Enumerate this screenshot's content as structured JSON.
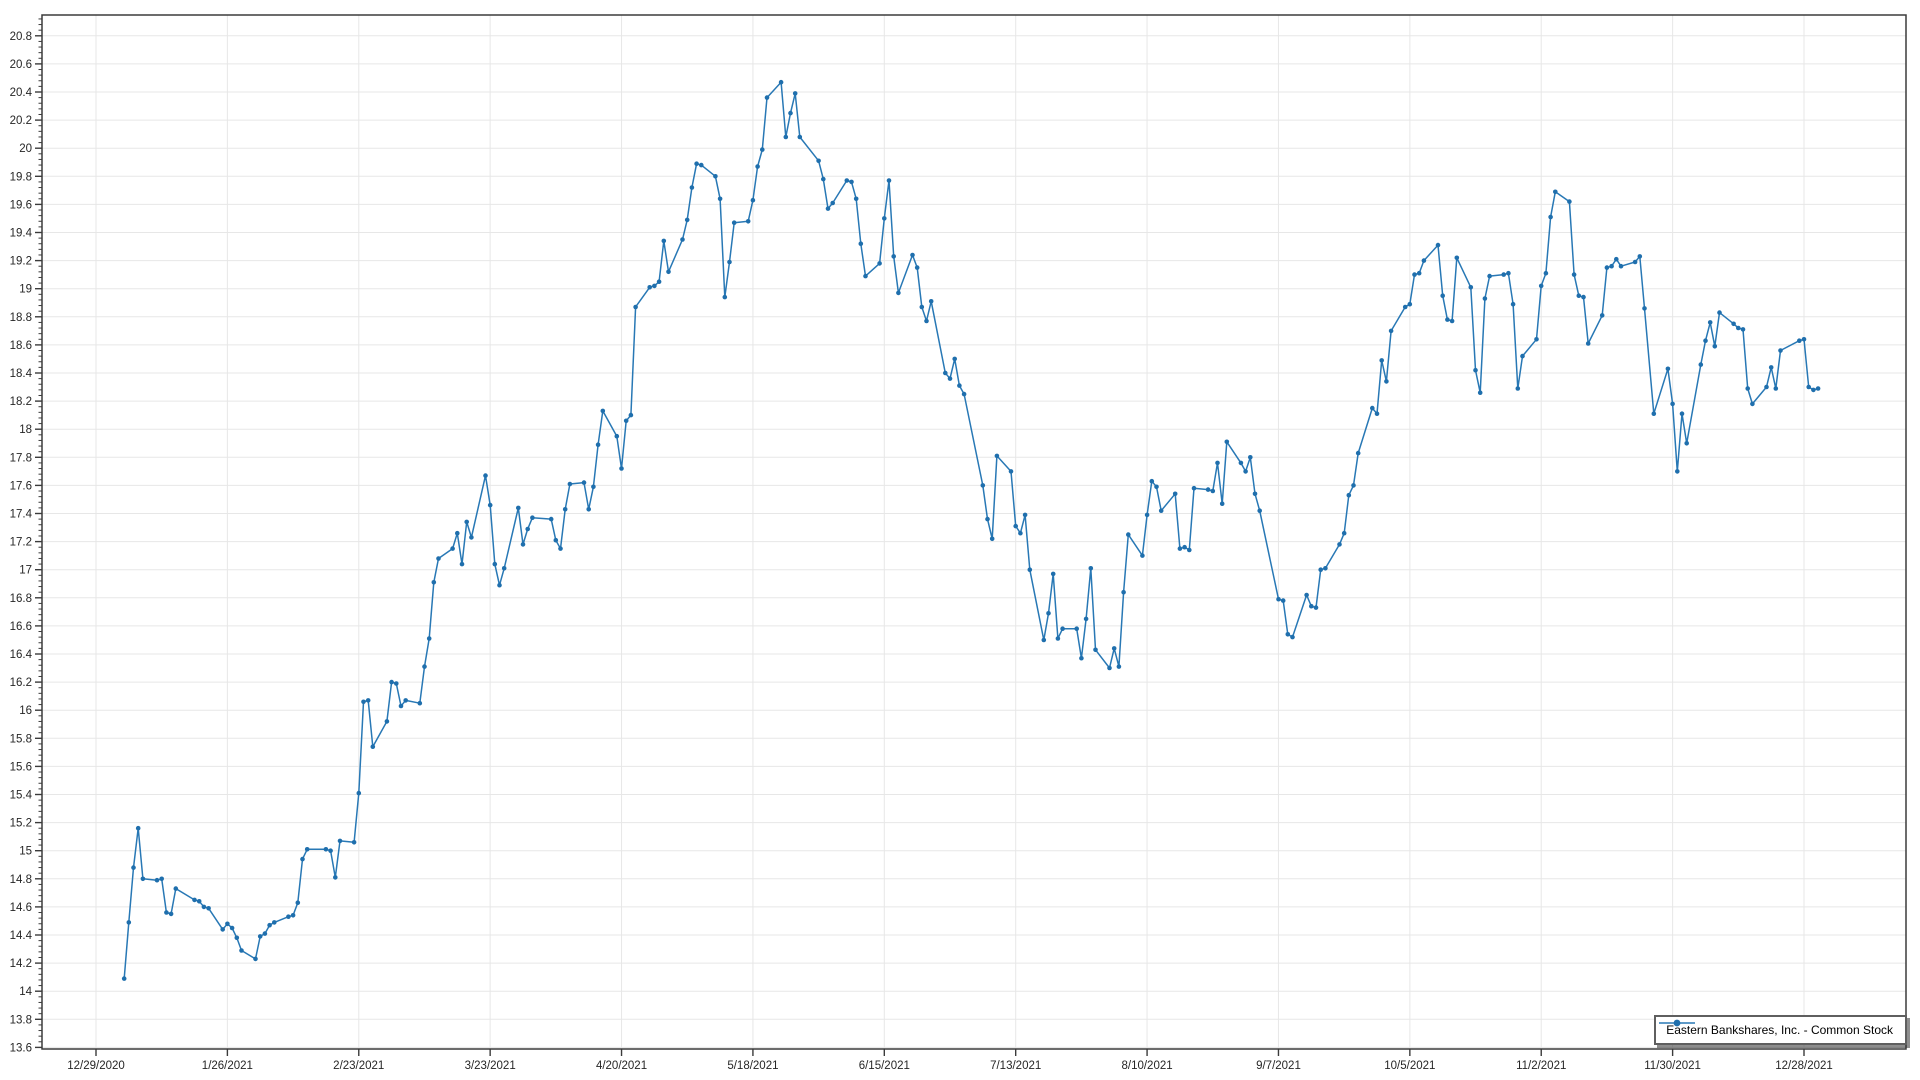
{
  "legend": {
    "label": "Eastern Bankshares, Inc. - Common Stock"
  },
  "chart_data": {
    "type": "line",
    "title": "",
    "xlabel": "",
    "ylabel": "",
    "grid": true,
    "legend_position": "bottom-right-inside",
    "line_color": "#2878b5",
    "marker_color": "#1f6fad",
    "gridline_color": "#e7e7e7",
    "axis_color": "#3b3b3b",
    "label_color": "#262626",
    "y_axis": {
      "min": 13.6,
      "max": 20.8,
      "major_step": 0.2,
      "minor_step": 0.04,
      "tick_labels": [
        "13.6",
        "13.8",
        "14",
        "14.2",
        "14.4",
        "14.6",
        "14.8",
        "15",
        "15.2",
        "15.4",
        "15.6",
        "15.8",
        "16",
        "16.2",
        "16.4",
        "16.6",
        "16.8",
        "17",
        "17.2",
        "17.4",
        "17.6",
        "17.8",
        "18",
        "18.2",
        "18.4",
        "18.6",
        "18.8",
        "19",
        "19.2",
        "19.4",
        "19.6",
        "19.8",
        "20",
        "20.2",
        "20.4",
        "20.6",
        "20.8"
      ]
    },
    "x_axis": {
      "start": "12/29/2020",
      "end_visible": "12/31/2021",
      "tick_labels": [
        "12/29/2020",
        "1/26/2021",
        "2/23/2021",
        "3/23/2021",
        "4/20/2021",
        "5/18/2021",
        "6/15/2021",
        "7/13/2021",
        "8/10/2021",
        "9/7/2021",
        "10/5/2021",
        "11/2/2021",
        "11/30/2021",
        "12/28/2021"
      ]
    },
    "series": [
      {
        "name": "Eastern Bankshares, Inc. - Common Stock",
        "dates": [
          "1/4/2021",
          "1/5/2021",
          "1/6/2021",
          "1/7/2021",
          "1/8/2021",
          "1/11/2021",
          "1/12/2021",
          "1/13/2021",
          "1/14/2021",
          "1/15/2021",
          "1/19/2021",
          "1/20/2021",
          "1/21/2021",
          "1/22/2021",
          "1/25/2021",
          "1/26/2021",
          "1/27/2021",
          "1/28/2021",
          "1/29/2021",
          "2/1/2021",
          "2/2/2021",
          "2/3/2021",
          "2/4/2021",
          "2/5/2021",
          "2/8/2021",
          "2/9/2021",
          "2/10/2021",
          "2/11/2021",
          "2/12/2021",
          "2/16/2021",
          "2/17/2021",
          "2/18/2021",
          "2/19/2021",
          "2/22/2021",
          "2/23/2021",
          "2/24/2021",
          "2/25/2021",
          "2/26/2021",
          "3/1/2021",
          "3/2/2021",
          "3/3/2021",
          "3/4/2021",
          "3/5/2021",
          "3/8/2021",
          "3/9/2021",
          "3/10/2021",
          "3/11/2021",
          "3/12/2021",
          "3/15/2021",
          "3/16/2021",
          "3/17/2021",
          "3/18/2021",
          "3/19/2021",
          "3/22/2021",
          "3/23/2021",
          "3/24/2021",
          "3/25/2021",
          "3/26/2021",
          "3/29/2021",
          "3/30/2021",
          "3/31/2021",
          "4/1/2021",
          "4/5/2021",
          "4/6/2021",
          "4/7/2021",
          "4/8/2021",
          "4/9/2021",
          "4/12/2021",
          "4/13/2021",
          "4/14/2021",
          "4/15/2021",
          "4/16/2021",
          "4/19/2021",
          "4/20/2021",
          "4/21/2021",
          "4/22/2021",
          "4/23/2021",
          "4/26/2021",
          "4/27/2021",
          "4/28/2021",
          "4/29/2021",
          "4/30/2021",
          "5/3/2021",
          "5/4/2021",
          "5/5/2021",
          "5/6/2021",
          "5/7/2021",
          "5/10/2021",
          "5/11/2021",
          "5/12/2021",
          "5/13/2021",
          "5/14/2021",
          "5/17/2021",
          "5/18/2021",
          "5/19/2021",
          "5/20/2021",
          "5/21/2021",
          "5/24/2021",
          "5/25/2021",
          "5/26/2021",
          "5/27/2021",
          "5/28/2021",
          "6/1/2021",
          "6/2/2021",
          "6/3/2021",
          "6/4/2021",
          "6/7/2021",
          "6/8/2021",
          "6/9/2021",
          "6/10/2021",
          "6/11/2021",
          "6/14/2021",
          "6/15/2021",
          "6/16/2021",
          "6/17/2021",
          "6/18/2021",
          "6/21/2021",
          "6/22/2021",
          "6/23/2021",
          "6/24/2021",
          "6/25/2021",
          "6/28/2021",
          "6/29/2021",
          "6/30/2021",
          "7/1/2021",
          "7/2/2021",
          "7/6/2021",
          "7/7/2021",
          "7/8/2021",
          "7/9/2021",
          "7/12/2021",
          "7/13/2021",
          "7/14/2021",
          "7/15/2021",
          "7/16/2021",
          "7/19/2021",
          "7/20/2021",
          "7/21/2021",
          "7/22/2021",
          "7/23/2021",
          "7/26/2021",
          "7/27/2021",
          "7/28/2021",
          "7/29/2021",
          "7/30/2021",
          "8/2/2021",
          "8/3/2021",
          "8/4/2021",
          "8/5/2021",
          "8/6/2021",
          "8/9/2021",
          "8/10/2021",
          "8/11/2021",
          "8/12/2021",
          "8/13/2021",
          "8/16/2021",
          "8/17/2021",
          "8/18/2021",
          "8/19/2021",
          "8/20/2021",
          "8/23/2021",
          "8/24/2021",
          "8/25/2021",
          "8/26/2021",
          "8/27/2021",
          "8/30/2021",
          "8/31/2021",
          "9/1/2021",
          "9/2/2021",
          "9/3/2021",
          "9/7/2021",
          "9/8/2021",
          "9/9/2021",
          "9/10/2021",
          "9/13/2021",
          "9/14/2021",
          "9/15/2021",
          "9/16/2021",
          "9/17/2021",
          "9/20/2021",
          "9/21/2021",
          "9/22/2021",
          "9/23/2021",
          "9/24/2021",
          "9/27/2021",
          "9/28/2021",
          "9/29/2021",
          "9/30/2021",
          "10/1/2021",
          "10/4/2021",
          "10/5/2021",
          "10/6/2021",
          "10/7/2021",
          "10/8/2021",
          "10/11/2021",
          "10/12/2021",
          "10/13/2021",
          "10/14/2021",
          "10/15/2021",
          "10/18/2021",
          "10/19/2021",
          "10/20/2021",
          "10/21/2021",
          "10/22/2021",
          "10/25/2021",
          "10/26/2021",
          "10/27/2021",
          "10/28/2021",
          "10/29/2021",
          "11/1/2021",
          "11/2/2021",
          "11/3/2021",
          "11/4/2021",
          "11/5/2021",
          "11/8/2021",
          "11/9/2021",
          "11/10/2021",
          "11/11/2021",
          "11/12/2021",
          "11/15/2021",
          "11/16/2021",
          "11/17/2021",
          "11/18/2021",
          "11/19/2021",
          "11/22/2021",
          "11/23/2021",
          "11/24/2021",
          "11/26/2021",
          "11/29/2021",
          "11/30/2021",
          "12/1/2021",
          "12/2/2021",
          "12/3/2021",
          "12/6/2021",
          "12/7/2021",
          "12/8/2021",
          "12/9/2021",
          "12/10/2021",
          "12/13/2021",
          "12/14/2021",
          "12/15/2021",
          "12/16/2021",
          "12/17/2021",
          "12/20/2021",
          "12/21/2021",
          "12/22/2021",
          "12/23/2021",
          "12/27/2021",
          "12/28/2021",
          "12/29/2021",
          "12/30/2021",
          "12/31/2021"
        ],
        "closes": [
          14.09,
          14.49,
          14.88,
          15.16,
          14.8,
          14.79,
          14.8,
          14.56,
          14.55,
          14.73,
          14.65,
          14.64,
          14.6,
          14.59,
          14.44,
          14.48,
          14.45,
          14.38,
          14.29,
          14.23,
          14.39,
          14.41,
          14.47,
          14.49,
          14.53,
          14.54,
          14.63,
          14.94,
          15.01,
          15.01,
          15.0,
          14.81,
          15.07,
          15.06,
          15.41,
          16.06,
          16.07,
          15.74,
          15.92,
          16.2,
          16.19,
          16.03,
          16.07,
          16.05,
          16.31,
          16.51,
          16.91,
          17.08,
          17.15,
          17.26,
          17.04,
          17.34,
          17.23,
          17.67,
          17.46,
          17.04,
          16.89,
          17.01,
          17.44,
          17.18,
          17.29,
          17.37,
          17.36,
          17.21,
          17.15,
          17.43,
          17.61,
          17.62,
          17.43,
          17.59,
          17.89,
          18.13,
          17.95,
          17.72,
          18.06,
          18.1,
          18.87,
          19.01,
          19.02,
          19.05,
          19.34,
          19.12,
          19.35,
          19.49,
          19.72,
          19.89,
          19.88,
          19.8,
          19.64,
          18.94,
          19.19,
          19.47,
          19.48,
          19.63,
          19.87,
          19.99,
          20.36,
          20.47,
          20.08,
          20.25,
          20.39,
          20.08,
          19.91,
          19.78,
          19.57,
          19.61,
          19.77,
          19.76,
          19.64,
          19.32,
          19.09,
          19.18,
          19.5,
          19.77,
          19.23,
          18.97,
          19.24,
          19.15,
          18.87,
          18.77,
          18.91,
          18.4,
          18.36,
          18.5,
          18.31,
          18.25,
          17.6,
          17.36,
          17.22,
          17.81,
          17.7,
          17.31,
          17.26,
          17.39,
          17.0,
          16.5,
          16.69,
          16.97,
          16.51,
          16.58,
          16.58,
          16.37,
          16.65,
          17.01,
          16.43,
          16.3,
          16.44,
          16.31,
          16.84,
          17.25,
          17.1,
          17.39,
          17.63,
          17.59,
          17.42,
          17.54,
          17.15,
          17.16,
          17.14,
          17.58,
          17.57,
          17.56,
          17.76,
          17.47,
          17.91,
          17.76,
          17.7,
          17.8,
          17.54,
          17.42,
          16.79,
          16.78,
          16.54,
          16.52,
          16.82,
          16.74,
          16.73,
          17.0,
          17.01,
          17.18,
          17.26,
          17.53,
          17.6,
          17.83,
          18.15,
          18.11,
          18.49,
          18.34,
          18.7,
          18.87,
          18.89,
          19.1,
          19.11,
          19.2,
          19.31,
          18.95,
          18.78,
          18.77,
          19.22,
          19.01,
          18.42,
          18.26,
          18.93,
          19.09,
          19.1,
          19.11,
          18.89,
          18.29,
          18.52,
          18.64,
          19.02,
          19.11,
          19.51,
          19.69,
          19.62,
          19.1,
          18.95,
          18.94,
          18.61,
          18.81,
          19.15,
          19.16,
          19.21,
          19.16,
          19.19,
          19.23,
          18.86,
          18.11,
          18.43,
          18.18,
          17.7,
          18.11,
          17.9,
          18.46,
          18.63,
          18.76,
          18.59,
          18.83,
          18.75,
          18.72,
          18.71,
          18.29,
          18.18,
          18.3,
          18.44,
          18.29,
          18.56,
          18.63,
          18.64,
          18.3,
          18.28,
          18.29
        ]
      }
    ]
  }
}
